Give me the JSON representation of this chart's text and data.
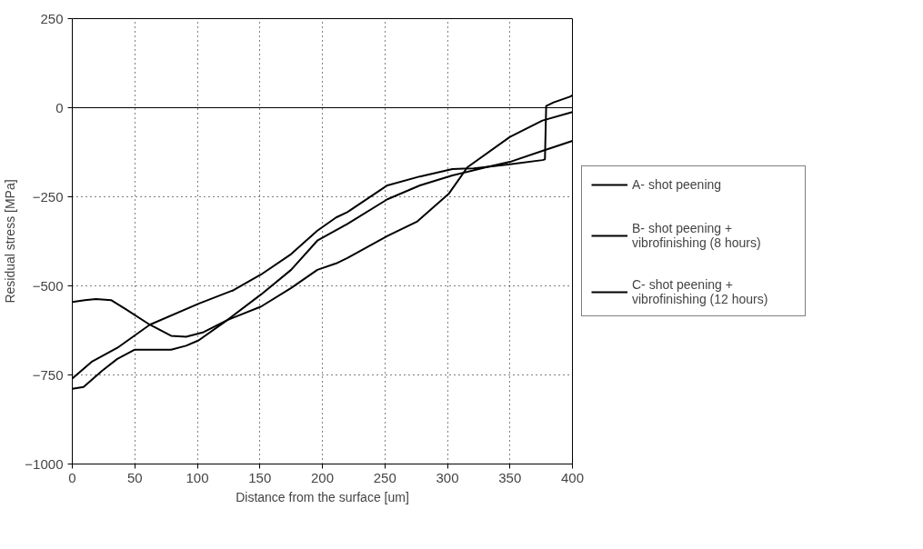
{
  "chart_data": {
    "type": "line",
    "xlabel": "Distance from the surface [um]",
    "ylabel": "Residual stress [MPa]",
    "xlim": [
      0,
      400
    ],
    "xticks": [
      0,
      50,
      100,
      150,
      200,
      250,
      300,
      350,
      400
    ],
    "ylim": [
      -1000,
      250
    ],
    "yticks": [
      -1000,
      -750,
      -500,
      -250,
      0,
      250
    ],
    "grid": true,
    "legend": "right",
    "marker": "none",
    "line_style": "solid",
    "ref_lines": [
      {
        "axis": "y",
        "value": 0,
        "color": "#000000",
        "line_style": "solid"
      }
    ],
    "series": [
      {
        "name": "A- shot peening",
        "color": "#000000",
        "x": [
          0,
          16,
          36,
          62,
          101,
          129,
          151,
          175,
          196,
          211,
          220,
          252,
          278,
          304,
          321,
          350,
          376,
          378,
          379,
          385,
          398,
          400
        ],
        "values": [
          -760,
          -712,
          -674,
          -609,
          -550,
          -512,
          -468,
          -411,
          -345,
          -308,
          -293,
          -218,
          -193,
          -172,
          -170,
          -159,
          -147,
          -145,
          5,
          15,
          31,
          35
        ]
      },
      {
        "name": "B- shot peening + vibrofinishing (8 hours)",
        "color": "#000000",
        "x": [
          0,
          9,
          24,
          36,
          50,
          79,
          91,
          101,
          124,
          151,
          175,
          196,
          220,
          252,
          278,
          304,
          331,
          350,
          376,
          400
        ],
        "values": [
          -789,
          -784,
          -738,
          -705,
          -679,
          -679,
          -668,
          -653,
          -596,
          -524,
          -455,
          -373,
          -326,
          -257,
          -218,
          -190,
          -167,
          -152,
          -121,
          -93
        ]
      },
      {
        "name": "C- shot peening + vibrofinishing (12 hours)",
        "color": "#000000",
        "x": [
          0,
          10,
          19,
          31,
          43,
          62,
          79,
          91,
          105,
          124,
          151,
          175,
          196,
          211,
          220,
          252,
          276,
          301,
          316,
          350,
          376,
          400
        ],
        "values": [
          -545,
          -540,
          -537,
          -540,
          -566,
          -609,
          -640,
          -643,
          -630,
          -596,
          -558,
          -506,
          -455,
          -437,
          -422,
          -360,
          -319,
          -242,
          -167,
          -82,
          -36,
          -12
        ]
      }
    ]
  }
}
